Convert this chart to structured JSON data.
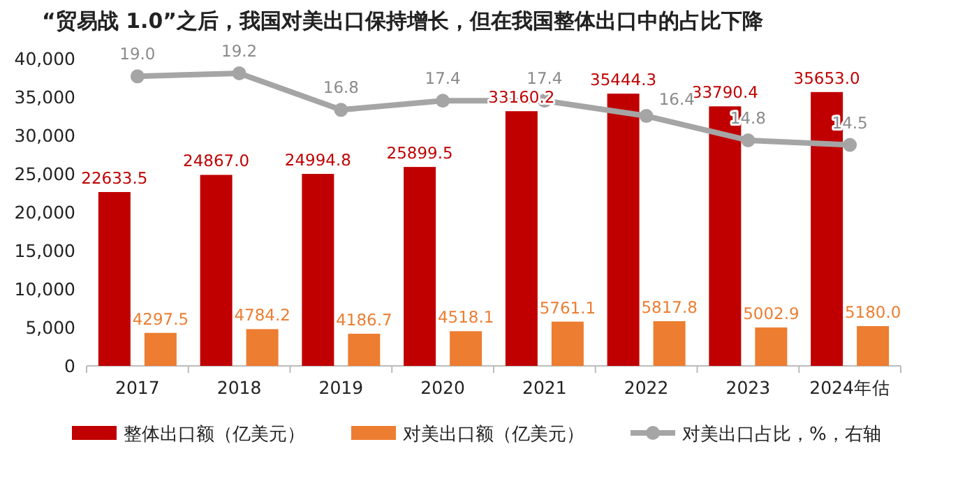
{
  "chart_data": {
    "type": "bar",
    "title": "“贸易战 1.0”之后，我国对美出口保持增长，但在我国整体出口中的占比下降",
    "categories": [
      "2017",
      "2018",
      "2019",
      "2020",
      "2021",
      "2022",
      "2023",
      "2024年估"
    ],
    "series": [
      {
        "name": "整体出口额（亿美元）",
        "color": "#c00000",
        "values": [
          22633.5,
          24867,
          24994.8,
          25899.5,
          33160.2,
          35444.3,
          33790.4,
          35653
        ],
        "value_labels": [
          "22633.5",
          "24867.0",
          "24994.8",
          "25899.5",
          "33160.2",
          "35444.3",
          "33790.4",
          "35653.0"
        ]
      },
      {
        "name": "对美出口额（亿美元）",
        "color": "#ed7d31",
        "values": [
          4297.5,
          4784.2,
          4186.7,
          4518.1,
          5761.1,
          5817.8,
          5002.9,
          5180
        ],
        "value_labels": [
          "4297.5",
          "4784.2",
          "4186.7",
          "4518.1",
          "5761.1",
          "5817.8",
          "5002.9",
          "5180.0"
        ]
      },
      {
        "name": "对美出口占比，%，右轴",
        "color": "#a5a5a5",
        "type": "line",
        "axis": "y2",
        "marker": "circle",
        "values": [
          19,
          19.2,
          16.8,
          17.4,
          17.4,
          16.4,
          14.8,
          14.5
        ],
        "value_labels": [
          "19.0",
          "19.2",
          "16.8",
          "17.4",
          "17.4",
          "16.4",
          "14.8",
          "14.5"
        ]
      }
    ],
    "ylim": [
      0,
      40000
    ],
    "yticks": [
      {
        "value": 0,
        "label": "0"
      },
      {
        "value": 5000,
        "label": "5,000"
      },
      {
        "value": 10000,
        "label": "10,000"
      },
      {
        "value": 15000,
        "label": "15,000"
      },
      {
        "value": 20000,
        "label": "20,000"
      },
      {
        "value": 25000,
        "label": "25,000"
      },
      {
        "value": 30000,
        "label": "30,000"
      },
      {
        "value": 35000,
        "label": "35,000"
      },
      {
        "value": 40000,
        "label": "40,000"
      }
    ],
    "legend": "bottom"
  }
}
